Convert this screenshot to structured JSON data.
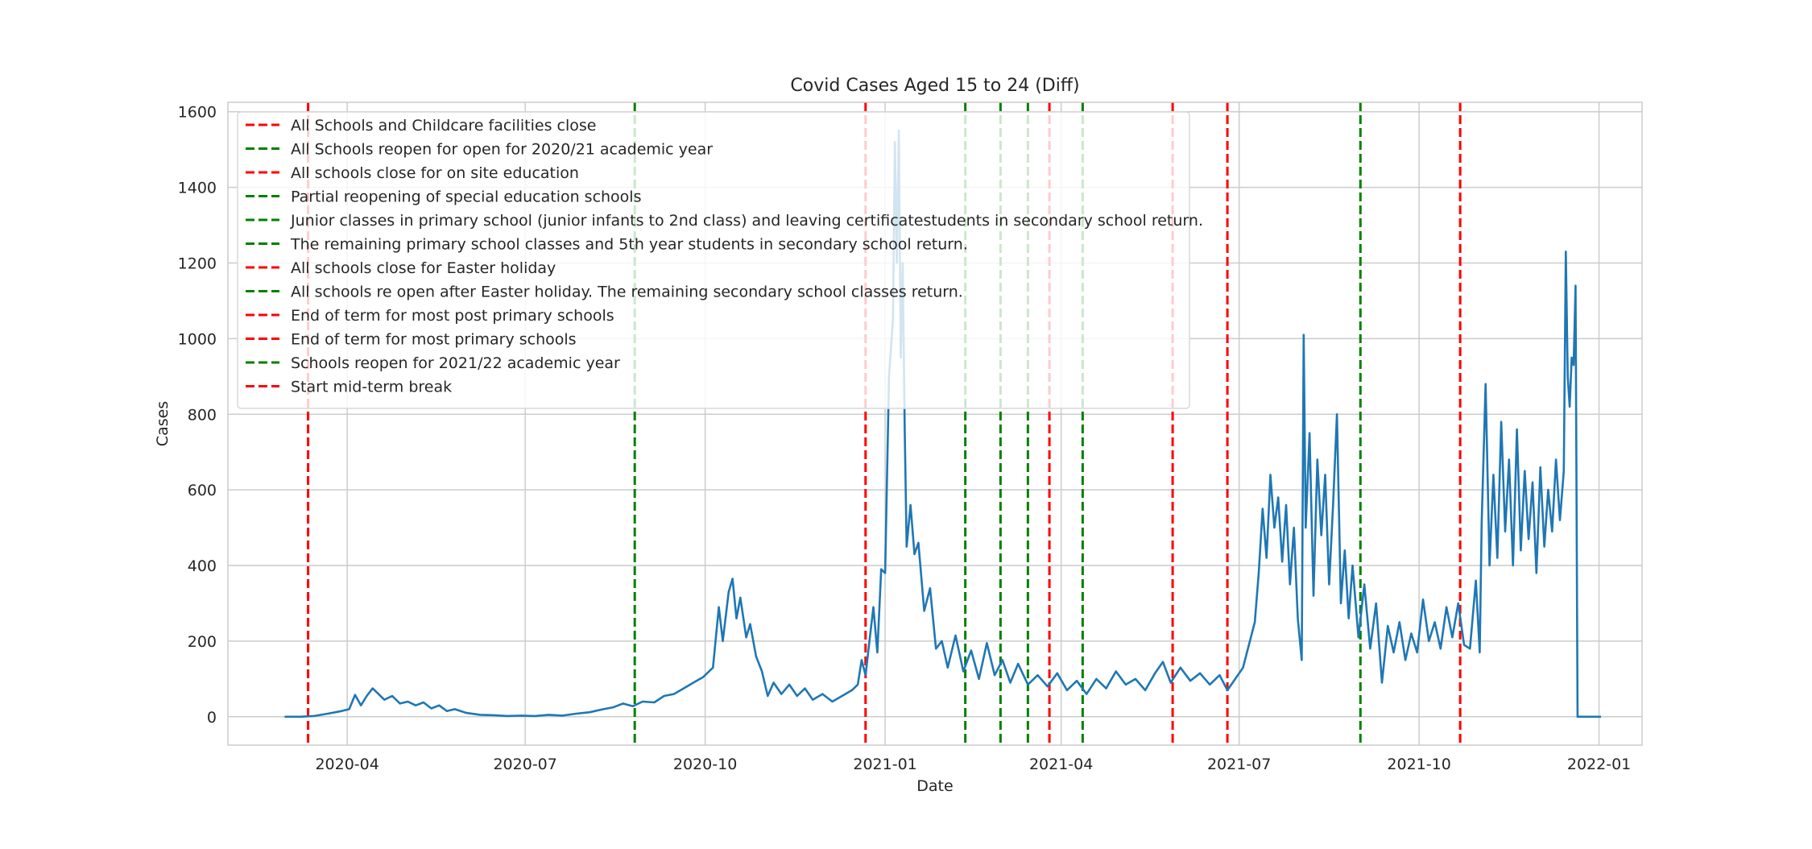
{
  "chart_data": {
    "type": "line",
    "title": "Covid Cases Aged 15 to 24 (Diff)",
    "xlabel": "Date",
    "ylabel": "Cases",
    "x_range": [
      "2020-01-31",
      "2022-01-23"
    ],
    "ylim": [
      -75,
      1625
    ],
    "y_ticks": [
      0,
      200,
      400,
      600,
      800,
      1000,
      1200,
      1400,
      1600
    ],
    "x_ticks": [
      {
        "date": "2020-04-01",
        "label": "2020-04"
      },
      {
        "date": "2020-07-01",
        "label": "2020-07"
      },
      {
        "date": "2020-10-01",
        "label": "2020-10"
      },
      {
        "date": "2021-01-01",
        "label": "2021-01"
      },
      {
        "date": "2021-04-01",
        "label": "2021-04"
      },
      {
        "date": "2021-07-01",
        "label": "2021-07"
      },
      {
        "date": "2021-10-01",
        "label": "2021-10"
      },
      {
        "date": "2022-01-01",
        "label": "2022-01"
      }
    ],
    "grid": true,
    "legend_position": "upper-left",
    "series": [
      {
        "color": "#1f77b4",
        "points": [
          [
            "2020-02-29",
            0
          ],
          [
            "2020-03-08",
            0
          ],
          [
            "2020-03-15",
            2
          ],
          [
            "2020-03-22",
            8
          ],
          [
            "2020-03-29",
            15
          ],
          [
            "2020-04-02",
            20
          ],
          [
            "2020-04-05",
            58
          ],
          [
            "2020-04-08",
            30
          ],
          [
            "2020-04-11",
            55
          ],
          [
            "2020-04-14",
            75
          ],
          [
            "2020-04-17",
            60
          ],
          [
            "2020-04-20",
            45
          ],
          [
            "2020-04-24",
            55
          ],
          [
            "2020-04-28",
            35
          ],
          [
            "2020-05-02",
            40
          ],
          [
            "2020-05-06",
            30
          ],
          [
            "2020-05-10",
            38
          ],
          [
            "2020-05-14",
            22
          ],
          [
            "2020-05-18",
            30
          ],
          [
            "2020-05-22",
            15
          ],
          [
            "2020-05-26",
            20
          ],
          [
            "2020-06-01",
            10
          ],
          [
            "2020-06-08",
            5
          ],
          [
            "2020-06-15",
            4
          ],
          [
            "2020-06-22",
            2
          ],
          [
            "2020-06-29",
            3
          ],
          [
            "2020-07-06",
            2
          ],
          [
            "2020-07-13",
            5
          ],
          [
            "2020-07-20",
            3
          ],
          [
            "2020-07-27",
            8
          ],
          [
            "2020-08-03",
            12
          ],
          [
            "2020-08-10",
            20
          ],
          [
            "2020-08-15",
            25
          ],
          [
            "2020-08-20",
            35
          ],
          [
            "2020-08-25",
            28
          ],
          [
            "2020-08-30",
            40
          ],
          [
            "2020-09-05",
            38
          ],
          [
            "2020-09-10",
            55
          ],
          [
            "2020-09-15",
            60
          ],
          [
            "2020-09-20",
            75
          ],
          [
            "2020-09-25",
            90
          ],
          [
            "2020-09-30",
            105
          ],
          [
            "2020-10-05",
            130
          ],
          [
            "2020-10-08",
            290
          ],
          [
            "2020-10-10",
            200
          ],
          [
            "2020-10-13",
            330
          ],
          [
            "2020-10-15",
            365
          ],
          [
            "2020-10-17",
            260
          ],
          [
            "2020-10-19",
            315
          ],
          [
            "2020-10-22",
            210
          ],
          [
            "2020-10-24",
            245
          ],
          [
            "2020-10-27",
            160
          ],
          [
            "2020-10-30",
            120
          ],
          [
            "2020-11-02",
            55
          ],
          [
            "2020-11-05",
            90
          ],
          [
            "2020-11-09",
            60
          ],
          [
            "2020-11-13",
            85
          ],
          [
            "2020-11-17",
            55
          ],
          [
            "2020-11-21",
            75
          ],
          [
            "2020-11-25",
            45
          ],
          [
            "2020-11-30",
            60
          ],
          [
            "2020-12-05",
            40
          ],
          [
            "2020-12-10",
            55
          ],
          [
            "2020-12-15",
            70
          ],
          [
            "2020-12-18",
            85
          ],
          [
            "2020-12-20",
            150
          ],
          [
            "2020-12-22",
            110
          ],
          [
            "2020-12-24",
            200
          ],
          [
            "2020-12-26",
            290
          ],
          [
            "2020-12-28",
            170
          ],
          [
            "2020-12-30",
            390
          ],
          [
            "2021-01-01",
            380
          ],
          [
            "2021-01-03",
            900
          ],
          [
            "2021-01-05",
            1050
          ],
          [
            "2021-01-06",
            1520
          ],
          [
            "2021-01-07",
            1200
          ],
          [
            "2021-01-08",
            1550
          ],
          [
            "2021-01-09",
            950
          ],
          [
            "2021-01-10",
            1200
          ],
          [
            "2021-01-11",
            760
          ],
          [
            "2021-01-12",
            450
          ],
          [
            "2021-01-14",
            560
          ],
          [
            "2021-01-16",
            430
          ],
          [
            "2021-01-18",
            460
          ],
          [
            "2021-01-21",
            280
          ],
          [
            "2021-01-24",
            340
          ],
          [
            "2021-01-27",
            180
          ],
          [
            "2021-01-30",
            200
          ],
          [
            "2021-02-02",
            130
          ],
          [
            "2021-02-06",
            215
          ],
          [
            "2021-02-10",
            120
          ],
          [
            "2021-02-14",
            175
          ],
          [
            "2021-02-18",
            100
          ],
          [
            "2021-02-22",
            195
          ],
          [
            "2021-02-26",
            110
          ],
          [
            "2021-03-02",
            150
          ],
          [
            "2021-03-06",
            90
          ],
          [
            "2021-03-10",
            140
          ],
          [
            "2021-03-15",
            85
          ],
          [
            "2021-03-20",
            110
          ],
          [
            "2021-03-25",
            80
          ],
          [
            "2021-03-30",
            115
          ],
          [
            "2021-04-04",
            70
          ],
          [
            "2021-04-09",
            95
          ],
          [
            "2021-04-14",
            60
          ],
          [
            "2021-04-19",
            100
          ],
          [
            "2021-04-24",
            75
          ],
          [
            "2021-04-29",
            120
          ],
          [
            "2021-05-04",
            85
          ],
          [
            "2021-05-09",
            100
          ],
          [
            "2021-05-14",
            70
          ],
          [
            "2021-05-19",
            115
          ],
          [
            "2021-05-23",
            145
          ],
          [
            "2021-05-27",
            90
          ],
          [
            "2021-06-01",
            130
          ],
          [
            "2021-06-06",
            95
          ],
          [
            "2021-06-11",
            115
          ],
          [
            "2021-06-16",
            85
          ],
          [
            "2021-06-21",
            110
          ],
          [
            "2021-06-25",
            70
          ],
          [
            "2021-06-29",
            100
          ],
          [
            "2021-07-03",
            130
          ],
          [
            "2021-07-06",
            190
          ],
          [
            "2021-07-09",
            250
          ],
          [
            "2021-07-11",
            380
          ],
          [
            "2021-07-13",
            550
          ],
          [
            "2021-07-15",
            420
          ],
          [
            "2021-07-17",
            640
          ],
          [
            "2021-07-19",
            500
          ],
          [
            "2021-07-21",
            580
          ],
          [
            "2021-07-23",
            410
          ],
          [
            "2021-07-25",
            560
          ],
          [
            "2021-07-27",
            350
          ],
          [
            "2021-07-29",
            500
          ],
          [
            "2021-07-31",
            260
          ],
          [
            "2021-08-02",
            150
          ],
          [
            "2021-08-03",
            1010
          ],
          [
            "2021-08-04",
            500
          ],
          [
            "2021-08-06",
            750
          ],
          [
            "2021-08-08",
            320
          ],
          [
            "2021-08-10",
            680
          ],
          [
            "2021-08-12",
            480
          ],
          [
            "2021-08-14",
            640
          ],
          [
            "2021-08-16",
            350
          ],
          [
            "2021-08-18",
            560
          ],
          [
            "2021-08-20",
            800
          ],
          [
            "2021-08-22",
            300
          ],
          [
            "2021-08-24",
            440
          ],
          [
            "2021-08-26",
            260
          ],
          [
            "2021-08-28",
            400
          ],
          [
            "2021-08-31",
            210
          ],
          [
            "2021-09-03",
            350
          ],
          [
            "2021-09-06",
            180
          ],
          [
            "2021-09-09",
            300
          ],
          [
            "2021-09-12",
            90
          ],
          [
            "2021-09-15",
            240
          ],
          [
            "2021-09-18",
            170
          ],
          [
            "2021-09-21",
            250
          ],
          [
            "2021-09-24",
            150
          ],
          [
            "2021-09-27",
            220
          ],
          [
            "2021-09-30",
            170
          ],
          [
            "2021-10-03",
            310
          ],
          [
            "2021-10-06",
            200
          ],
          [
            "2021-10-09",
            250
          ],
          [
            "2021-10-12",
            180
          ],
          [
            "2021-10-15",
            290
          ],
          [
            "2021-10-18",
            210
          ],
          [
            "2021-10-21",
            300
          ],
          [
            "2021-10-24",
            190
          ],
          [
            "2021-10-27",
            180
          ],
          [
            "2021-10-30",
            360
          ],
          [
            "2021-11-01",
            170
          ],
          [
            "2021-11-02",
            510
          ],
          [
            "2021-11-04",
            880
          ],
          [
            "2021-11-06",
            400
          ],
          [
            "2021-11-08",
            640
          ],
          [
            "2021-11-10",
            420
          ],
          [
            "2021-11-12",
            780
          ],
          [
            "2021-11-14",
            490
          ],
          [
            "2021-11-16",
            680
          ],
          [
            "2021-11-18",
            400
          ],
          [
            "2021-11-20",
            760
          ],
          [
            "2021-11-22",
            440
          ],
          [
            "2021-11-24",
            650
          ],
          [
            "2021-11-26",
            470
          ],
          [
            "2021-11-28",
            620
          ],
          [
            "2021-11-30",
            380
          ],
          [
            "2021-12-02",
            660
          ],
          [
            "2021-12-04",
            450
          ],
          [
            "2021-12-06",
            600
          ],
          [
            "2021-12-08",
            490
          ],
          [
            "2021-12-10",
            680
          ],
          [
            "2021-12-12",
            520
          ],
          [
            "2021-12-14",
            650
          ],
          [
            "2021-12-15",
            1230
          ],
          [
            "2021-12-16",
            900
          ],
          [
            "2021-12-17",
            820
          ],
          [
            "2021-12-18",
            950
          ],
          [
            "2021-12-19",
            930
          ],
          [
            "2021-12-20",
            1140
          ],
          [
            "2021-12-21",
            0
          ],
          [
            "2021-12-25",
            0
          ],
          [
            "2022-01-02",
            0
          ]
        ]
      }
    ],
    "events": [
      {
        "date": "2020-03-12",
        "color": "red",
        "label": "All Schools and Childcare facilities close"
      },
      {
        "date": "2020-08-26",
        "color": "green",
        "label": "All Schools reopen for open for 2020/21 academic year"
      },
      {
        "date": "2020-12-22",
        "color": "red",
        "label": "All schools close for on site education"
      },
      {
        "date": "2021-02-11",
        "color": "green",
        "label": "Partial reopening of special education schools"
      },
      {
        "date": "2021-03-01",
        "color": "green",
        "label": "Junior classes in primary school (junior infants to 2nd class) and leaving certificatestudents in secondary school return."
      },
      {
        "date": "2021-03-15",
        "color": "green",
        "label": "The remaining primary school classes and 5th year students in secondary school return."
      },
      {
        "date": "2021-03-26",
        "color": "red",
        "label": "All schools close for Easter holiday"
      },
      {
        "date": "2021-04-12",
        "color": "green",
        "label": "All schools re open after Easter holiday. The remaining secondary school classes return."
      },
      {
        "date": "2021-05-28",
        "color": "red",
        "label": "End of term for most post primary schools"
      },
      {
        "date": "2021-06-25",
        "color": "red",
        "label": "End of term for most primary schools"
      },
      {
        "date": "2021-09-01",
        "color": "green",
        "label": "Schools reopen for 2021/22 academic year"
      },
      {
        "date": "2021-10-22",
        "color": "red",
        "label": "Start mid-term break"
      }
    ],
    "colors": {
      "red": "#ff0000",
      "green": "#008000",
      "line": "#1f77b4",
      "grid": "#cccccc"
    }
  }
}
